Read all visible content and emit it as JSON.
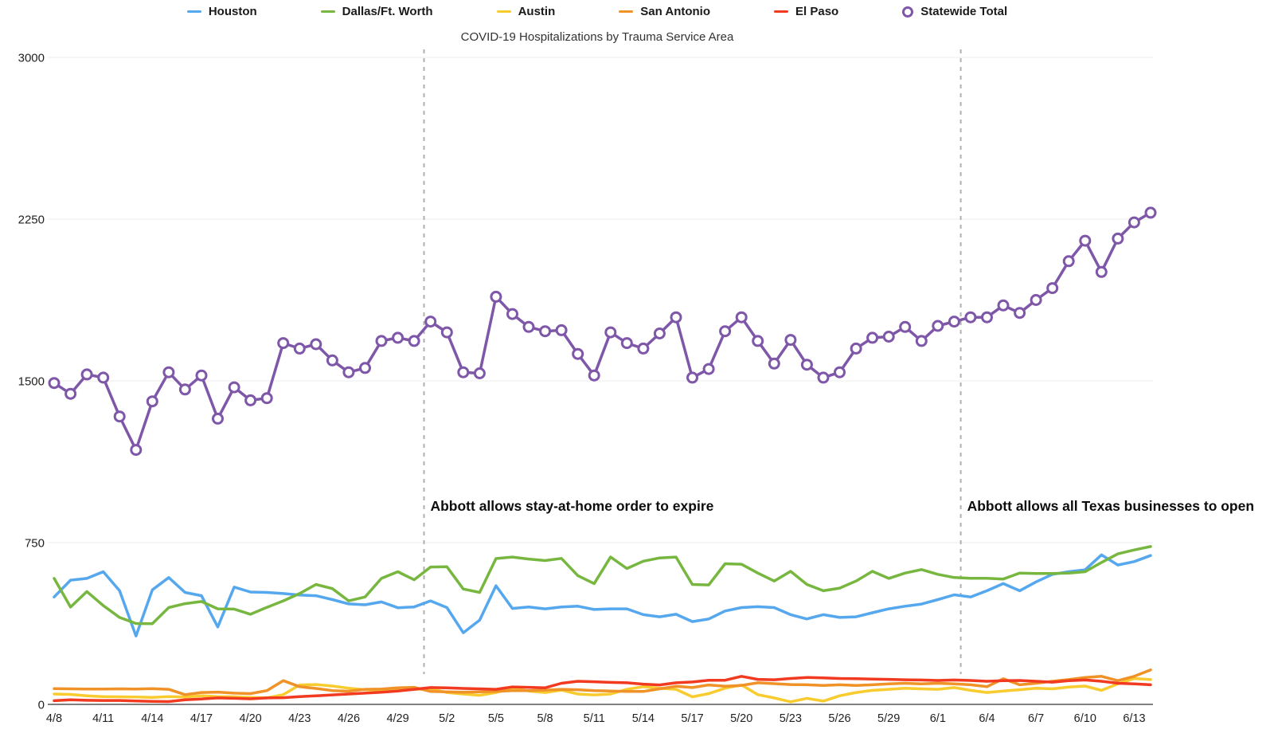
{
  "title": "COVID-19 Hospitalizations by Trauma Service Area",
  "legend": {
    "statewide_marker": "open-circle"
  },
  "axes": {
    "y_tick_labels": [
      "0",
      "750",
      "1500",
      "2250",
      "3000"
    ],
    "x_tick_every": 3
  },
  "chart_data": {
    "type": "line",
    "title": "COVID-19 Hospitalizations by Trauma Service Area",
    "xlabel": "",
    "ylabel": "",
    "ylim": [
      0,
      3000
    ],
    "yticks": [
      0,
      750,
      1500,
      2250,
      3000
    ],
    "grid": true,
    "legend_position": "top",
    "x": [
      "4/8",
      "4/9",
      "4/10",
      "4/11",
      "4/12",
      "4/13",
      "4/14",
      "4/15",
      "4/16",
      "4/17",
      "4/18",
      "4/19",
      "4/20",
      "4/21",
      "4/22",
      "4/23",
      "4/24",
      "4/25",
      "4/26",
      "4/27",
      "4/28",
      "4/29",
      "4/30",
      "5/1",
      "5/2",
      "5/3",
      "5/4",
      "5/5",
      "5/6",
      "5/7",
      "5/8",
      "5/9",
      "5/10",
      "5/11",
      "5/12",
      "5/13",
      "5/14",
      "5/15",
      "5/16",
      "5/17",
      "5/18",
      "5/19",
      "5/20",
      "5/21",
      "5/22",
      "5/23",
      "5/24",
      "5/25",
      "5/26",
      "5/27",
      "5/28",
      "5/29",
      "5/30",
      "5/31",
      "6/1",
      "6/2",
      "6/3",
      "6/4",
      "6/5",
      "6/6",
      "6/7",
      "6/8",
      "6/9",
      "6/10",
      "6/11",
      "6/12",
      "6/13",
      "6/14"
    ],
    "series": [
      {
        "name": "Houston",
        "color": "#55a7ee",
        "marker": "none",
        "values": [
          498,
          576,
          584,
          615,
          527,
          317,
          531,
          588,
          519,
          504,
          359,
          544,
          521,
          519,
          514,
          507,
          504,
          486,
          466,
          462,
          475,
          448,
          452,
          480,
          449,
          332,
          391,
          550,
          445,
          452,
          443,
          452,
          455,
          440,
          443,
          443,
          416,
          406,
          418,
          384,
          396,
          433,
          449,
          453,
          449,
          416,
          396,
          416,
          403,
          406,
          425,
          443,
          455,
          465,
          486,
          508,
          498,
          527,
          560,
          527,
          568,
          603,
          615,
          624,
          693,
          646,
          662,
          690
        ]
      },
      {
        "name": "Dallas/Ft. Worth",
        "color": "#77b740",
        "marker": "none",
        "values": [
          584,
          451,
          523,
          458,
          403,
          375,
          374,
          449,
          467,
          477,
          443,
          442,
          418,
          450,
          480,
          514,
          556,
          537,
          480,
          498,
          584,
          615,
          578,
          637,
          638,
          535,
          519,
          676,
          683,
          674,
          667,
          677,
          597,
          560,
          683,
          630,
          664,
          679,
          683,
          556,
          554,
          652,
          650,
          609,
          572,
          617,
          556,
          527,
          539,
          572,
          617,
          584,
          609,
          625,
          603,
          588,
          585,
          585,
          581,
          609,
          607,
          607,
          609,
          615,
          658,
          698,
          716,
          732
        ]
      },
      {
        "name": "Austin",
        "color": "#f8cb2e",
        "marker": "none",
        "values": [
          48,
          46,
          40,
          36,
          35,
          34,
          32,
          36,
          34,
          40,
          36,
          35,
          32,
          30,
          45,
          90,
          92,
          85,
          75,
          68,
          66,
          68,
          70,
          72,
          55,
          48,
          42,
          55,
          75,
          62,
          55,
          66,
          48,
          44,
          48,
          70,
          82,
          75,
          70,
          35,
          50,
          75,
          90,
          45,
          30,
          12,
          28,
          15,
          40,
          55,
          65,
          70,
          75,
          72,
          70,
          78,
          65,
          55,
          62,
          68,
          75,
          72,
          80,
          85,
          65,
          95,
          120,
          115
        ]
      },
      {
        "name": "San Antonio",
        "color": "#ef9227",
        "marker": "none",
        "values": [
          73,
          72,
          71,
          71,
          72,
          71,
          73,
          70,
          45,
          55,
          57,
          52,
          50,
          64,
          110,
          82,
          74,
          64,
          61,
          70,
          71,
          77,
          79,
          60,
          58,
          56,
          58,
          60,
          64,
          64,
          66,
          70,
          68,
          64,
          62,
          60,
          60,
          72,
          84,
          78,
          90,
          84,
          88,
          100,
          96,
          92,
          91,
          88,
          91,
          88,
          91,
          95,
          98,
          95,
          98,
          95,
          91,
          82,
          119,
          91,
          98,
          107,
          115,
          125,
          130,
          110,
          130,
          160
        ]
      },
      {
        "name": "El Paso",
        "color": "#f13a1f",
        "marker": "none",
        "values": [
          17,
          21,
          19,
          18,
          18,
          16,
          14,
          13,
          21,
          25,
          30,
          28,
          26,
          30,
          31,
          36,
          40,
          44,
          48,
          52,
          56,
          62,
          70,
          78,
          77,
          74,
          72,
          70,
          81,
          79,
          77,
          98,
          107,
          105,
          102,
          100,
          94,
          90,
          100,
          104,
          112,
          112,
          130,
          116,
          114,
          120,
          125,
          123,
          120,
          119,
          117,
          116,
          114,
          113,
          111,
          113,
          111,
          107,
          110,
          111,
          107,
          103,
          110,
          113,
          107,
          98,
          95,
          91
        ]
      },
      {
        "name": "Statewide Total",
        "color": "#7e57a8",
        "marker": "circle",
        "values": [
          1490,
          1440,
          1530,
          1515,
          1335,
          1180,
          1405,
          1540,
          1460,
          1525,
          1325,
          1470,
          1410,
          1420,
          1675,
          1650,
          1670,
          1595,
          1540,
          1560,
          1685,
          1700,
          1685,
          1775,
          1725,
          1540,
          1535,
          1890,
          1810,
          1750,
          1730,
          1735,
          1625,
          1525,
          1725,
          1675,
          1650,
          1720,
          1795,
          1515,
          1555,
          1730,
          1795,
          1685,
          1580,
          1690,
          1575,
          1515,
          1540,
          1650,
          1700,
          1705,
          1750,
          1685,
          1755,
          1775,
          1795,
          1795,
          1850,
          1815,
          1875,
          1930,
          2055,
          2150,
          2005,
          2160,
          2235,
          2280
        ]
      }
    ],
    "annotations": [
      {
        "label": "Abbott allows stay-at-home order to expire",
        "x_index": 22.6
      },
      {
        "label": "Abbott allows all Texas businesses to open",
        "x_index": 55.4
      }
    ]
  }
}
